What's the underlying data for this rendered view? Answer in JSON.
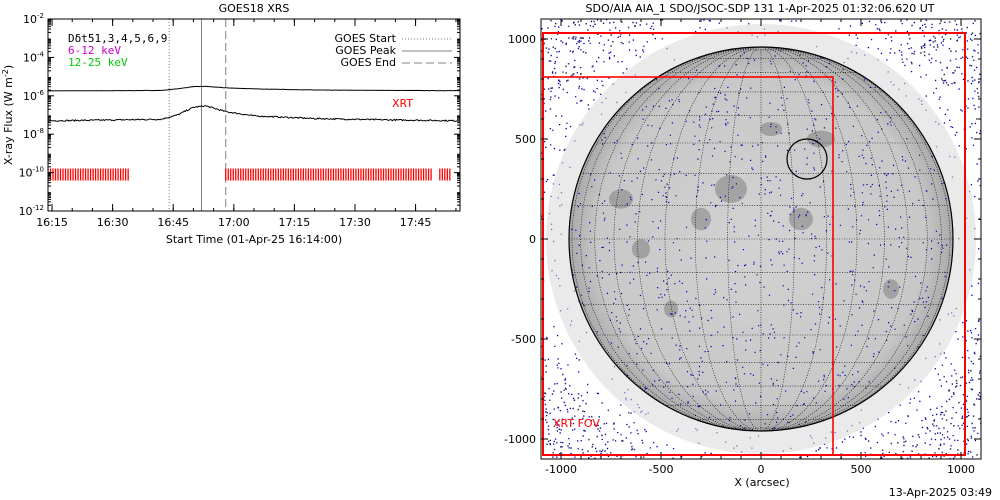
{
  "chart_data": [
    {
      "type": "line",
      "title": "GOES18 XRS",
      "xlabel": "Start Time (01-Apr-25 16:14:00)",
      "ylabel": "X-ray Flux (W m^-2)",
      "ylabel_base": "X-ray Flux (W m",
      "ylabel_sup": "-2",
      "ylabel_end": ")",
      "yscale": "log",
      "ylim_exp": [
        -12,
        -2
      ],
      "xlim": [
        "16:14",
        "17:56"
      ],
      "x_ticks": [
        "16:15",
        "16:30",
        "16:45",
        "17:00",
        "17:15",
        "17:30",
        "17:45"
      ],
      "y_ticks": [
        {
          "exp": -2,
          "label": "10",
          "sup": "-2"
        },
        {
          "exp": -4,
          "label": "10",
          "sup": "-4"
        },
        {
          "exp": -6,
          "label": "10",
          "sup": "-6"
        },
        {
          "exp": -8,
          "label": "10",
          "sup": "-8"
        },
        {
          "exp": -10,
          "label": "10",
          "sup": "-10"
        },
        {
          "exp": -12,
          "label": "10",
          "sup": "-12"
        }
      ],
      "legend_left": [
        {
          "text": "Dδt51,3,4,5,6,9",
          "color": "#000000"
        },
        {
          "text": "6-12 keV",
          "color": "#cc00cc"
        },
        {
          "text": "12-25 keV",
          "color": "#00cc00"
        }
      ],
      "legend_right": [
        {
          "text": "GOES Start",
          "style": "dotted"
        },
        {
          "text": "GOES Peak",
          "style": "solid"
        },
        {
          "text": "GOES End",
          "style": "dashed"
        }
      ],
      "events": {
        "goes_start": "16:44",
        "goes_peak": "16:52",
        "goes_end": "16:58"
      },
      "annotation": {
        "text": "XRT",
        "color": "#ff0000"
      },
      "series": [
        {
          "channel": "long",
          "points": [
            [
              "16:14",
              1.8e-06
            ],
            [
              "16:30",
              1.85e-06
            ],
            [
              "16:42",
              1.9e-06
            ],
            [
              "16:46",
              2.3e-06
            ],
            [
              "16:50",
              3e-06
            ],
            [
              "16:53",
              3.1e-06
            ],
            [
              "16:58",
              2.6e-06
            ],
            [
              "17:05",
              2.3e-06
            ],
            [
              "17:20",
              2e-06
            ],
            [
              "17:40",
              1.9e-06
            ],
            [
              "17:56",
              1.85e-06
            ]
          ]
        },
        {
          "channel": "short",
          "points": [
            [
              "16:14",
              5e-08
            ],
            [
              "16:30",
              5.5e-08
            ],
            [
              "16:42",
              6e-08
            ],
            [
              "16:46",
              1e-07
            ],
            [
              "16:50",
              2.5e-07
            ],
            [
              "16:53",
              3e-07
            ],
            [
              "16:58",
              1.5e-07
            ],
            [
              "17:05",
              9e-08
            ],
            [
              "17:20",
              6.5e-08
            ],
            [
              "17:40",
              5.5e-08
            ],
            [
              "17:56",
              5e-08
            ]
          ]
        }
      ],
      "xrt_coverage": [
        [
          "16:14",
          "16:34"
        ],
        [
          "16:58",
          "17:49"
        ],
        [
          "17:51",
          "17:54"
        ]
      ],
      "xrt_level_exp": -10.1,
      "colors": {
        "long": "#000000",
        "short": "#000000",
        "xrt": "#ff0000",
        "events": "#808080"
      }
    },
    {
      "type": "scatter",
      "title": "SDO/AIA AIA_1 SDO/JSOC-SDP 131  1-Apr-2025 01:32:06.620 UT",
      "xlabel": "X (arcsec)",
      "xlim": [
        -1100,
        1100
      ],
      "ylim": [
        -1100,
        1100
      ],
      "x_ticks": [
        -1000,
        -500,
        0,
        500,
        1000
      ],
      "y_ticks": [
        1000,
        500,
        0,
        -500,
        -1000
      ],
      "x_tick_labels": [
        "-1000",
        "-500",
        "0",
        "500",
        "1000"
      ],
      "y_tick_labels": [
        "1000",
        "500",
        "0",
        "-500",
        "-1000"
      ],
      "solar_radius_arcsec": 960,
      "grid_spacing_deg": 10,
      "fovs": [
        {
          "name": "outer",
          "x": [
            -1090,
            1020
          ],
          "y": [
            -1080,
            1030
          ],
          "color": "#ff0000"
        },
        {
          "name": "inner",
          "x": [
            -1090,
            360
          ],
          "y": [
            -1080,
            810
          ],
          "color": "#ff0000"
        }
      ],
      "fov_label": {
        "text": "XRT FOV",
        "color": "#ff0000"
      },
      "circle": {
        "x": 230,
        "y": 400,
        "r": 100
      },
      "colors": {
        "disk": "#c8c8c8",
        "background": "#ffffff",
        "noise": "#0000aa",
        "grid": "#000000"
      }
    }
  ],
  "footer": {
    "timestamp": "13-Apr-2025 03:49"
  }
}
